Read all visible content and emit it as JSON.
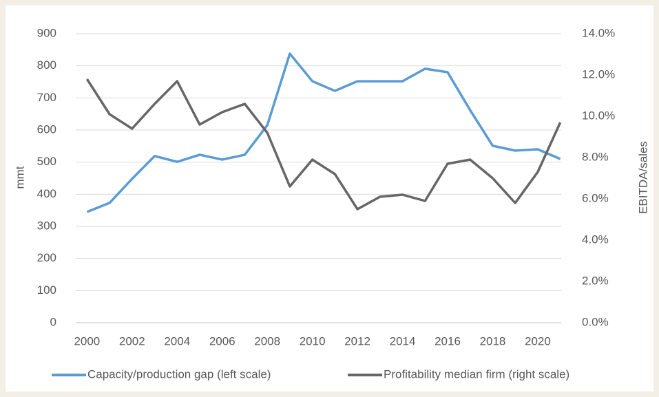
{
  "chart_data": {
    "type": "line",
    "x": [
      2000,
      2001,
      2002,
      2003,
      2004,
      2005,
      2006,
      2007,
      2008,
      2009,
      2010,
      2011,
      2012,
      2013,
      2014,
      2015,
      2016,
      2017,
      2018,
      2019,
      2020,
      2021
    ],
    "xlim": [
      1999.5,
      2021.5
    ],
    "xticks": [
      2000,
      2002,
      2004,
      2006,
      2008,
      2010,
      2012,
      2014,
      2016,
      2018,
      2020
    ],
    "ylabel": "mmt",
    "ylim": [
      0,
      900
    ],
    "yticks": [
      0,
      100,
      200,
      300,
      400,
      500,
      600,
      700,
      800,
      900
    ],
    "y2label": "EBITDA/sales",
    "y2lim": [
      0,
      14
    ],
    "y2ticks": [
      {
        "value": 0,
        "label": "0.0%"
      },
      {
        "value": 2,
        "label": "2.0%"
      },
      {
        "value": 4,
        "label": "4.0%"
      },
      {
        "value": 6,
        "label": "6.0%"
      },
      {
        "value": 8,
        "label": "8.0%"
      },
      {
        "value": 10,
        "label": "10.0%"
      },
      {
        "value": 12,
        "label": "12.0%"
      },
      {
        "value": 14,
        "label": "14.0%"
      }
    ],
    "grid": true,
    "legend": "bottom",
    "series": [
      {
        "name": "Capacity/production gap (left scale)",
        "color": "#5b9bd5",
        "axis": "y",
        "values": [
          345,
          373,
          448,
          519,
          501,
          523,
          508,
          523,
          615,
          838,
          752,
          722,
          752,
          752,
          752,
          791,
          780,
          662,
          551,
          536,
          540,
          510
        ]
      },
      {
        "name": "Profitability median firm (right scale)",
        "color": "#666666",
        "axis": "y2",
        "values": [
          11.8,
          10.1,
          9.4,
          10.6,
          11.7,
          9.6,
          10.2,
          10.6,
          9.2,
          6.6,
          7.9,
          7.2,
          5.5,
          6.1,
          6.2,
          5.9,
          7.7,
          7.9,
          7.0,
          5.8,
          7.3,
          9.7
        ]
      }
    ]
  }
}
